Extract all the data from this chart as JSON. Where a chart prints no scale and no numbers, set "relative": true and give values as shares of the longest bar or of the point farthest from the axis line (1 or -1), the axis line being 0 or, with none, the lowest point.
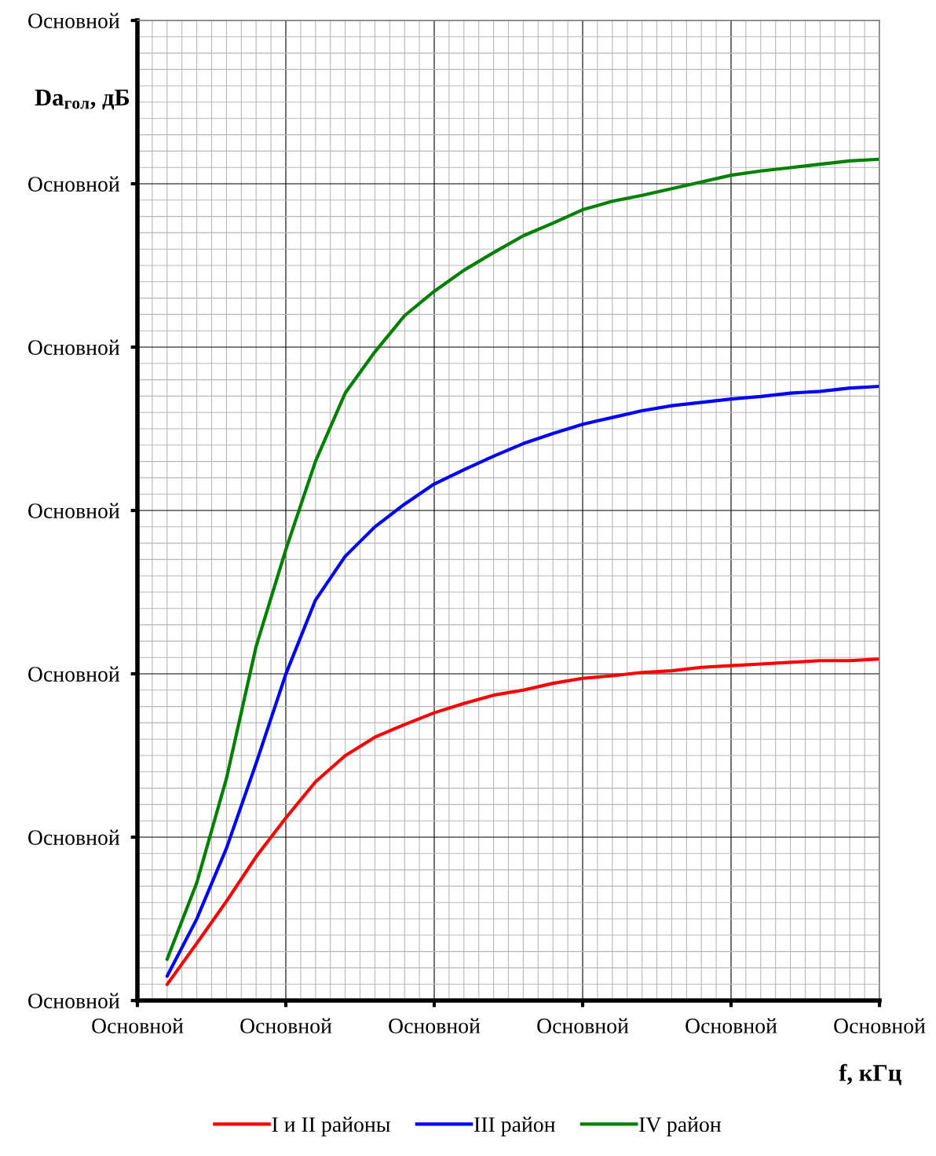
{
  "chart_data": {
    "type": "line",
    "xlabel": "f, кГц",
    "ylabel": "Da$_{гол}$, дБ",
    "relative": true,
    "annotations": [
      "Основной",
      "Основной",
      "Основной",
      "Основной",
      "Основной",
      "Основной",
      "Основной"
    ],
    "categories": [
      "Основной",
      null,
      null,
      null,
      null,
      "Основной",
      null,
      null,
      null,
      null,
      "Основной",
      null,
      null,
      null,
      null,
      "Основной",
      null,
      null,
      null,
      null,
      "Основной",
      null,
      null,
      null,
      null,
      "Основной"
    ],
    "series": [
      {
        "name": "I и II районы",
        "color": "#ff0000",
        "values": [
          null,
          0.019,
          0.068,
          0.118,
          0.171,
          0.217,
          0.26,
          0.291,
          0.313,
          0.328,
          0.342,
          0.353,
          0.363,
          0.369,
          0.377,
          0.383,
          0.386,
          0.39,
          0.392,
          0.396,
          0.398,
          0.4,
          0.402,
          0.404,
          0.404,
          0.406
        ]
      },
      {
        "name": "III район",
        "color": "#0000ff",
        "values": [
          null,
          0.029,
          0.097,
          0.181,
          0.282,
          0.388,
          0.476,
          0.528,
          0.563,
          0.59,
          0.614,
          0.631,
          0.647,
          0.662,
          0.674,
          0.685,
          0.693,
          0.701,
          0.707,
          0.711,
          0.715,
          0.718,
          0.722,
          0.724,
          0.728,
          0.73
        ]
      },
      {
        "name": "IV район",
        "color": "#008000",
        "values": [
          null,
          0.049,
          0.14,
          0.264,
          0.421,
          0.536,
          0.641,
          0.722,
          0.771,
          0.814,
          0.843,
          0.868,
          0.889,
          0.909,
          0.924,
          0.94,
          0.95,
          0.957,
          0.965,
          0.973,
          0.981,
          0.986,
          0.99,
          0.994,
          0.998,
          1.0
        ]
      }
    ],
    "grid": true,
    "legend": "bottom",
    "marker": "none",
    "line_style": "solid"
  }
}
